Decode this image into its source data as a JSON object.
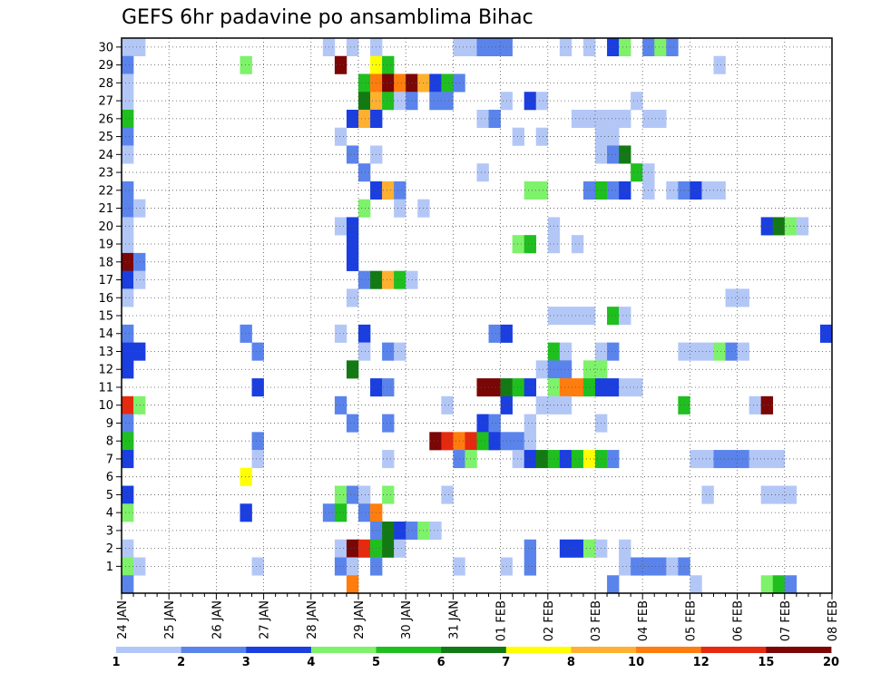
{
  "chart_data": {
    "type": "heatmap",
    "title": "GEFS 6hr padavine po ansamblima Bihac",
    "xlabel": "",
    "ylabel": "",
    "y_ticks": [
      "1",
      "2",
      "3",
      "4",
      "5",
      "6",
      "7",
      "8",
      "9",
      "10",
      "11",
      "12",
      "13",
      "14",
      "15",
      "16",
      "17",
      "18",
      "19",
      "20",
      "21",
      "22",
      "23",
      "24",
      "25",
      "26",
      "27",
      "28",
      "29",
      "30"
    ],
    "x_ticks": [
      "24 JAN",
      "25 JAN",
      "26 JAN",
      "27 JAN",
      "28 JAN",
      "29 JAN",
      "30 JAN",
      "31 JAN",
      "01 FEB",
      "02 FEB",
      "03 FEB",
      "04 FEB",
      "05 FEB",
      "06 FEB",
      "07 FEB",
      "08 FEB"
    ],
    "x_range_steps": [
      0,
      60
    ],
    "grid": true,
    "colorbar": {
      "labels": [
        "1",
        "2",
        "3",
        "4",
        "5",
        "6",
        "7",
        "8",
        "10",
        "12",
        "15",
        "20"
      ],
      "colors": [
        "#b3c7f7",
        "#5a84ec",
        "#1a3ee0",
        "#7ef26a",
        "#1fbf1f",
        "#137a13",
        "#ffff00",
        "#ffb030",
        "#ff7d0d",
        "#e62a0f",
        "#7a0606"
      ]
    },
    "cells": [
      [
        30,
        0,
        1,
        1
      ],
      [
        30,
        1,
        1,
        1
      ],
      [
        30,
        17,
        1,
        1
      ],
      [
        30,
        19,
        1,
        1
      ],
      [
        30,
        21,
        1,
        1
      ],
      [
        30,
        28,
        2,
        1
      ],
      [
        30,
        30,
        3,
        2
      ],
      [
        30,
        37,
        1,
        1
      ],
      [
        30,
        39,
        1,
        1
      ],
      [
        30,
        41,
        1,
        3
      ],
      [
        30,
        42,
        1,
        4
      ],
      [
        30,
        44,
        1,
        2
      ],
      [
        30,
        45,
        1,
        4
      ],
      [
        30,
        46,
        1,
        2
      ],
      [
        29,
        0,
        1,
        2
      ],
      [
        29,
        10,
        1,
        4
      ],
      [
        29,
        18,
        1,
        11
      ],
      [
        29,
        21,
        1,
        7
      ],
      [
        29,
        22,
        1,
        5
      ],
      [
        29,
        50,
        1,
        1
      ],
      [
        28,
        0,
        1,
        1
      ],
      [
        28,
        20,
        1,
        5
      ],
      [
        28,
        21,
        1,
        9
      ],
      [
        28,
        22,
        1,
        11
      ],
      [
        28,
        23,
        1,
        9
      ],
      [
        28,
        24,
        1,
        11
      ],
      [
        28,
        25,
        1,
        8
      ],
      [
        28,
        26,
        1,
        3
      ],
      [
        28,
        27,
        1,
        5
      ],
      [
        28,
        28,
        1,
        2
      ],
      [
        27,
        0,
        1,
        1
      ],
      [
        27,
        20,
        1,
        6
      ],
      [
        27,
        21,
        1,
        8
      ],
      [
        27,
        22,
        1,
        5
      ],
      [
        27,
        23,
        1,
        1
      ],
      [
        27,
        24,
        1,
        2
      ],
      [
        27,
        26,
        2,
        2
      ],
      [
        27,
        32,
        1,
        1
      ],
      [
        27,
        34,
        1,
        3
      ],
      [
        27,
        35,
        1,
        1
      ],
      [
        27,
        43,
        1,
        1
      ],
      [
        26,
        0,
        1,
        5
      ],
      [
        26,
        19,
        1,
        3
      ],
      [
        26,
        20,
        1,
        8
      ],
      [
        26,
        21,
        1,
        3
      ],
      [
        26,
        30,
        1,
        1
      ],
      [
        26,
        31,
        1,
        2
      ],
      [
        26,
        38,
        5,
        1
      ],
      [
        26,
        44,
        2,
        1
      ],
      [
        25,
        0,
        1,
        2
      ],
      [
        25,
        18,
        1,
        1
      ],
      [
        25,
        33,
        1,
        1
      ],
      [
        25,
        35,
        1,
        1
      ],
      [
        25,
        40,
        2,
        1
      ],
      [
        24,
        0,
        1,
        1
      ],
      [
        24,
        19,
        1,
        2
      ],
      [
        24,
        21,
        1,
        1
      ],
      [
        24,
        40,
        1,
        1
      ],
      [
        24,
        41,
        1,
        2
      ],
      [
        24,
        42,
        1,
        6
      ],
      [
        23,
        20,
        1,
        2
      ],
      [
        23,
        30,
        1,
        1
      ],
      [
        23,
        43,
        1,
        5
      ],
      [
        23,
        44,
        1,
        1
      ],
      [
        22,
        0,
        1,
        2
      ],
      [
        22,
        21,
        1,
        3
      ],
      [
        22,
        22,
        1,
        8
      ],
      [
        22,
        23,
        1,
        2
      ],
      [
        22,
        34,
        2,
        4
      ],
      [
        22,
        39,
        1,
        2
      ],
      [
        22,
        40,
        1,
        5
      ],
      [
        22,
        41,
        1,
        2
      ],
      [
        22,
        42,
        1,
        3
      ],
      [
        22,
        44,
        1,
        1
      ],
      [
        22,
        46,
        1,
        1
      ],
      [
        22,
        47,
        1,
        2
      ],
      [
        22,
        48,
        1,
        3
      ],
      [
        22,
        49,
        2,
        1
      ],
      [
        21,
        0,
        1,
        2
      ],
      [
        21,
        1,
        1,
        1
      ],
      [
        21,
        20,
        1,
        4
      ],
      [
        21,
        23,
        1,
        1
      ],
      [
        21,
        25,
        1,
        1
      ],
      [
        20,
        0,
        1,
        1
      ],
      [
        20,
        18,
        1,
        1
      ],
      [
        20,
        19,
        1,
        3
      ],
      [
        20,
        36,
        1,
        1
      ],
      [
        20,
        54,
        1,
        3
      ],
      [
        20,
        55,
        1,
        6
      ],
      [
        20,
        56,
        1,
        4
      ],
      [
        20,
        57,
        1,
        1
      ],
      [
        19,
        0,
        1,
        1
      ],
      [
        19,
        19,
        1,
        3
      ],
      [
        19,
        33,
        1,
        4
      ],
      [
        19,
        34,
        1,
        5
      ],
      [
        19,
        36,
        1,
        1
      ],
      [
        19,
        38,
        1,
        1
      ],
      [
        18,
        0,
        1,
        11
      ],
      [
        18,
        1,
        1,
        2
      ],
      [
        18,
        19,
        1,
        3
      ],
      [
        17,
        0,
        1,
        3
      ],
      [
        17,
        1,
        1,
        1
      ],
      [
        17,
        20,
        1,
        2
      ],
      [
        17,
        21,
        1,
        6
      ],
      [
        17,
        22,
        1,
        8
      ],
      [
        17,
        23,
        1,
        5
      ],
      [
        17,
        24,
        1,
        1
      ],
      [
        16,
        0,
        1,
        1
      ],
      [
        16,
        19,
        1,
        1
      ],
      [
        16,
        51,
        2,
        1
      ],
      [
        15,
        36,
        4,
        1
      ],
      [
        15,
        41,
        1,
        5
      ],
      [
        15,
        42,
        1,
        1
      ],
      [
        14,
        0,
        1,
        2
      ],
      [
        14,
        10,
        1,
        2
      ],
      [
        14,
        18,
        1,
        1
      ],
      [
        14,
        20,
        1,
        3
      ],
      [
        14,
        31,
        1,
        2
      ],
      [
        14,
        32,
        1,
        3
      ],
      [
        14,
        59,
        1,
        3
      ],
      [
        13,
        0,
        2,
        3
      ],
      [
        13,
        11,
        1,
        2
      ],
      [
        13,
        20,
        1,
        1
      ],
      [
        13,
        22,
        1,
        2
      ],
      [
        13,
        23,
        1,
        1
      ],
      [
        13,
        36,
        1,
        5
      ],
      [
        13,
        37,
        1,
        1
      ],
      [
        13,
        40,
        1,
        1
      ],
      [
        13,
        41,
        1,
        2
      ],
      [
        13,
        47,
        3,
        1
      ],
      [
        13,
        50,
        1,
        4
      ],
      [
        13,
        51,
        1,
        2
      ],
      [
        13,
        52,
        1,
        1
      ],
      [
        12,
        0,
        1,
        3
      ],
      [
        12,
        19,
        1,
        6
      ],
      [
        12,
        35,
        1,
        1
      ],
      [
        12,
        36,
        2,
        2
      ],
      [
        12,
        39,
        2,
        4
      ],
      [
        11,
        11,
        1,
        3
      ],
      [
        11,
        21,
        1,
        3
      ],
      [
        11,
        22,
        1,
        2
      ],
      [
        11,
        30,
        2,
        11
      ],
      [
        11,
        32,
        1,
        6
      ],
      [
        11,
        33,
        1,
        5
      ],
      [
        11,
        34,
        1,
        3
      ],
      [
        11,
        36,
        1,
        4
      ],
      [
        11,
        37,
        2,
        9
      ],
      [
        11,
        39,
        1,
        5
      ],
      [
        11,
        40,
        2,
        3
      ],
      [
        11,
        42,
        2,
        1
      ],
      [
        10,
        0,
        1,
        10
      ],
      [
        10,
        1,
        1,
        4
      ],
      [
        10,
        18,
        1,
        2
      ],
      [
        10,
        27,
        1,
        1
      ],
      [
        10,
        32,
        1,
        3
      ],
      [
        10,
        35,
        3,
        1
      ],
      [
        10,
        47,
        1,
        5
      ],
      [
        10,
        53,
        1,
        1
      ],
      [
        10,
        54,
        1,
        11
      ],
      [
        9,
        0,
        1,
        2
      ],
      [
        9,
        19,
        1,
        2
      ],
      [
        9,
        22,
        1,
        2
      ],
      [
        9,
        30,
        1,
        3
      ],
      [
        9,
        31,
        1,
        2
      ],
      [
        9,
        34,
        1,
        1
      ],
      [
        9,
        40,
        1,
        1
      ],
      [
        8,
        0,
        1,
        5
      ],
      [
        8,
        11,
        1,
        2
      ],
      [
        8,
        26,
        1,
        11
      ],
      [
        8,
        27,
        1,
        10
      ],
      [
        8,
        28,
        1,
        9
      ],
      [
        8,
        29,
        1,
        10
      ],
      [
        8,
        30,
        1,
        5
      ],
      [
        8,
        31,
        1,
        3
      ],
      [
        8,
        32,
        2,
        2
      ],
      [
        8,
        34,
        1,
        1
      ],
      [
        7,
        0,
        1,
        3
      ],
      [
        7,
        11,
        1,
        1
      ],
      [
        7,
        22,
        1,
        1
      ],
      [
        7,
        28,
        1,
        2
      ],
      [
        7,
        29,
        1,
        4
      ],
      [
        7,
        33,
        1,
        1
      ],
      [
        7,
        34,
        1,
        3
      ],
      [
        7,
        35,
        1,
        6
      ],
      [
        7,
        36,
        1,
        5
      ],
      [
        7,
        37,
        1,
        3
      ],
      [
        7,
        38,
        1,
        5
      ],
      [
        7,
        39,
        1,
        7
      ],
      [
        7,
        40,
        1,
        5
      ],
      [
        7,
        41,
        1,
        2
      ],
      [
        7,
        48,
        2,
        1
      ],
      [
        7,
        50,
        3,
        2
      ],
      [
        7,
        53,
        3,
        1
      ],
      [
        6,
        10,
        1,
        7
      ],
      [
        5,
        0,
        1,
        3
      ],
      [
        5,
        18,
        1,
        4
      ],
      [
        5,
        19,
        1,
        2
      ],
      [
        5,
        20,
        1,
        1
      ],
      [
        5,
        22,
        1,
        4
      ],
      [
        5,
        27,
        1,
        1
      ],
      [
        5,
        49,
        1,
        1
      ],
      [
        5,
        54,
        3,
        1
      ],
      [
        4,
        0,
        1,
        4
      ],
      [
        4,
        10,
        1,
        3
      ],
      [
        4,
        17,
        1,
        2
      ],
      [
        4,
        18,
        1,
        5
      ],
      [
        4,
        20,
        1,
        2
      ],
      [
        4,
        21,
        1,
        9
      ],
      [
        3,
        21,
        1,
        2
      ],
      [
        3,
        22,
        1,
        6
      ],
      [
        3,
        23,
        1,
        3
      ],
      [
        3,
        24,
        1,
        2
      ],
      [
        3,
        25,
        1,
        4
      ],
      [
        3,
        26,
        1,
        1
      ],
      [
        2,
        0,
        1,
        1
      ],
      [
        2,
        18,
        1,
        1
      ],
      [
        2,
        19,
        1,
        11
      ],
      [
        2,
        20,
        1,
        10
      ],
      [
        2,
        21,
        1,
        5
      ],
      [
        2,
        22,
        1,
        6
      ],
      [
        2,
        23,
        1,
        1
      ],
      [
        2,
        34,
        1,
        2
      ],
      [
        2,
        37,
        2,
        3
      ],
      [
        2,
        39,
        1,
        4
      ],
      [
        2,
        40,
        1,
        1
      ],
      [
        2,
        42,
        1,
        1
      ],
      [
        1,
        0,
        1,
        4
      ],
      [
        1,
        1,
        1,
        1
      ],
      [
        1,
        11,
        1,
        1
      ],
      [
        1,
        18,
        1,
        2
      ],
      [
        1,
        19,
        1,
        1
      ],
      [
        1,
        21,
        1,
        2
      ],
      [
        1,
        28,
        1,
        1
      ],
      [
        1,
        32,
        1,
        1
      ],
      [
        1,
        34,
        1,
        2
      ],
      [
        1,
        42,
        1,
        1
      ],
      [
        1,
        43,
        2,
        2
      ],
      [
        1,
        45,
        1,
        2
      ],
      [
        1,
        46,
        1,
        1
      ],
      [
        1,
        47,
        1,
        2
      ],
      [
        0,
        0,
        1,
        2
      ],
      [
        0,
        19,
        1,
        9
      ],
      [
        0,
        41,
        1,
        2
      ],
      [
        0,
        48,
        1,
        1
      ],
      [
        0,
        54,
        1,
        4
      ],
      [
        0,
        55,
        1,
        5
      ],
      [
        0,
        56,
        1,
        2
      ]
    ]
  }
}
